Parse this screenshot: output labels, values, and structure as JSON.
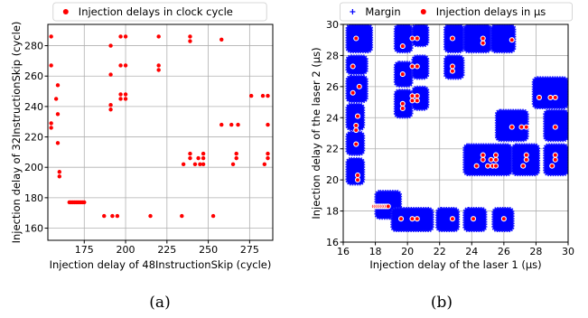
{
  "chart_data": [
    {
      "type": "scatter",
      "caption": "(a)",
      "xlabel": "Injection delay of 48InstructionSkip (cycle)",
      "ylabel": "Injection delay of 32InstructionSkip (cycle)",
      "xlim": [
        153,
        289
      ],
      "ylim": [
        152,
        294
      ],
      "xticks": [
        175,
        200,
        225,
        250,
        275
      ],
      "yticks": [
        160,
        180,
        200,
        220,
        240,
        260,
        280
      ],
      "grid": true,
      "legend": "top-center",
      "series": [
        {
          "name": "Injection delays in clock cycle",
          "color": "#ff0000",
          "marker": "dot",
          "points": [
            [
              155,
              286
            ],
            [
              155,
              267
            ],
            [
              155,
              229
            ],
            [
              155,
              226
            ],
            [
              159,
              254
            ],
            [
              158,
              245
            ],
            [
              159,
              235
            ],
            [
              159,
              216
            ],
            [
              160,
              197
            ],
            [
              160,
              194
            ],
            [
              166,
              177
            ],
            [
              167,
              177
            ],
            [
              168,
              177
            ],
            [
              169,
              177
            ],
            [
              170,
              177
            ],
            [
              171,
              177
            ],
            [
              172,
              177
            ],
            [
              173,
              177
            ],
            [
              174,
              177
            ],
            [
              175,
              177
            ],
            [
              187,
              168
            ],
            [
              192,
              168
            ],
            [
              195,
              168
            ],
            [
              191,
              280
            ],
            [
              191,
              261
            ],
            [
              191,
              241
            ],
            [
              191,
              238
            ],
            [
              197,
              286
            ],
            [
              197,
              267
            ],
            [
              197,
              248
            ],
            [
              197,
              245
            ],
            [
              200,
              286
            ],
            [
              200,
              267
            ],
            [
              200,
              248
            ],
            [
              200,
              245
            ],
            [
              215,
              168
            ],
            [
              220,
              286
            ],
            [
              220,
              267
            ],
            [
              220,
              264
            ],
            [
              239,
              286
            ],
            [
              239,
              283
            ],
            [
              239,
              209
            ],
            [
              239,
              206
            ],
            [
              235,
              202
            ],
            [
              242,
              202
            ],
            [
              244,
              206
            ],
            [
              245,
              202
            ],
            [
              247,
              209
            ],
            [
              247,
              206
            ],
            [
              247,
              202
            ],
            [
              234,
              168
            ],
            [
              253,
              168
            ],
            [
              258,
              284
            ],
            [
              258,
              228
            ],
            [
              264,
              228
            ],
            [
              268,
              228
            ],
            [
              265,
              202
            ],
            [
              267,
              206
            ],
            [
              267,
              209
            ],
            [
              276,
              247
            ],
            [
              283,
              247
            ],
            [
              286,
              247
            ],
            [
              286,
              228
            ],
            [
              284,
              202
            ],
            [
              286,
              206
            ],
            [
              286,
              209
            ]
          ]
        }
      ]
    },
    {
      "type": "scatter",
      "caption": "(b)",
      "xlabel": "Injection delay of the laser 1 (µs)",
      "ylabel": "Injection delay of the laser 2 (µs)",
      "xlim": [
        16,
        30
      ],
      "ylim": [
        16,
        30
      ],
      "xticks": [
        16,
        18,
        20,
        22,
        24,
        26,
        28,
        30
      ],
      "yticks": [
        16,
        18,
        20,
        22,
        24,
        26,
        28,
        30
      ],
      "grid": true,
      "legend": "top-center",
      "series": [
        {
          "name": "Margin",
          "color": "#0000ff",
          "marker": "plus",
          "regions": [
            [
              16.2,
              28.2,
              17.8,
              30.0
            ],
            [
              16.2,
              26.8,
              17.5,
              28.0
            ],
            [
              16.2,
              25.0,
              17.5,
              26.7
            ],
            [
              16.2,
              23.2,
              17.3,
              24.9
            ],
            [
              16.2,
              21.6,
              17.3,
              23.1
            ],
            [
              16.2,
              19.7,
              17.3,
              21.4
            ],
            [
              19.2,
              28.2,
              20.3,
              30.0
            ],
            [
              20.3,
              28.6,
              21.3,
              30.0
            ],
            [
              22.3,
              28.2,
              23.5,
              30.0
            ],
            [
              23.5,
              28.2,
              25.2,
              30.0
            ],
            [
              25.2,
              28.2,
              26.7,
              30.0
            ],
            [
              22.3,
              26.5,
              23.5,
              28.0
            ],
            [
              19.2,
              26.0,
              20.3,
              27.6
            ],
            [
              20.3,
              26.5,
              21.3,
              28.0
            ],
            [
              19.2,
              24.0,
              20.3,
              25.8
            ],
            [
              20.3,
              24.5,
              21.3,
              26.0
            ],
            [
              18.0,
              17.5,
              19.6,
              19.3
            ],
            [
              19.0,
              16.7,
              21.6,
              18.2
            ],
            [
              21.8,
              16.7,
              23.2,
              18.2
            ],
            [
              23.5,
              16.7,
              24.9,
              18.2
            ],
            [
              25.3,
              16.7,
              26.6,
              18.2
            ],
            [
              23.5,
              20.3,
              26.5,
              22.3
            ],
            [
              25.5,
              22.5,
              27.5,
              24.5
            ],
            [
              26.5,
              20.3,
              28.2,
              22.3
            ],
            [
              27.8,
              24.6,
              30.0,
              26.6
            ],
            [
              28.5,
              22.5,
              30.0,
              24.5
            ],
            [
              28.5,
              20.3,
              30.0,
              22.3
            ]
          ]
        },
        {
          "name": "Injection delays in µs",
          "color": "#ff0000",
          "marker": "dot",
          "points": [
            [
              16.8,
              29.1
            ],
            [
              16.6,
              27.3
            ],
            [
              16.6,
              25.6
            ],
            [
              17.0,
              26.0
            ],
            [
              16.8,
              23.5
            ],
            [
              16.8,
              23.2
            ],
            [
              16.9,
              24.1
            ],
            [
              16.8,
              22.3
            ],
            [
              16.9,
              20.3
            ],
            [
              16.9,
              20.0
            ],
            [
              17.9,
              18.3
            ],
            [
              18.0,
              18.3
            ],
            [
              18.1,
              18.3
            ],
            [
              18.2,
              18.3
            ],
            [
              18.3,
              18.3
            ],
            [
              18.4,
              18.3
            ],
            [
              18.5,
              18.3
            ],
            [
              18.6,
              18.3
            ],
            [
              18.7,
              18.3
            ],
            [
              18.8,
              18.3
            ],
            [
              19.6,
              17.5
            ],
            [
              20.3,
              17.5
            ],
            [
              20.6,
              17.5
            ],
            [
              19.7,
              28.6
            ],
            [
              19.7,
              26.8
            ],
            [
              19.7,
              24.9
            ],
            [
              19.7,
              24.6
            ],
            [
              20.3,
              29.1
            ],
            [
              20.3,
              27.3
            ],
            [
              20.3,
              25.4
            ],
            [
              20.3,
              25.1
            ],
            [
              20.6,
              29.1
            ],
            [
              20.6,
              27.3
            ],
            [
              20.6,
              25.4
            ],
            [
              20.6,
              25.1
            ],
            [
              22.8,
              17.5
            ],
            [
              22.8,
              29.1
            ],
            [
              22.8,
              27.3
            ],
            [
              22.8,
              27.0
            ],
            [
              24.1,
              17.5
            ],
            [
              24.7,
              29.1
            ],
            [
              24.7,
              28.8
            ],
            [
              24.7,
              21.6
            ],
            [
              24.7,
              21.3
            ],
            [
              24.3,
              20.9
            ],
            [
              25.0,
              20.9
            ],
            [
              25.2,
              21.3
            ],
            [
              25.3,
              20.9
            ],
            [
              25.5,
              21.6
            ],
            [
              25.5,
              21.3
            ],
            [
              25.5,
              20.9
            ],
            [
              26.0,
              17.5
            ],
            [
              26.5,
              29.0
            ],
            [
              26.5,
              23.4
            ],
            [
              27.1,
              23.4
            ],
            [
              27.4,
              23.4
            ],
            [
              27.2,
              20.9
            ],
            [
              27.4,
              21.3
            ],
            [
              27.4,
              21.6
            ],
            [
              28.2,
              25.3
            ],
            [
              28.9,
              25.3
            ],
            [
              29.2,
              25.3
            ],
            [
              29.2,
              23.4
            ],
            [
              29.0,
              20.9
            ],
            [
              29.2,
              21.3
            ],
            [
              29.2,
              21.6
            ]
          ]
        }
      ]
    }
  ]
}
